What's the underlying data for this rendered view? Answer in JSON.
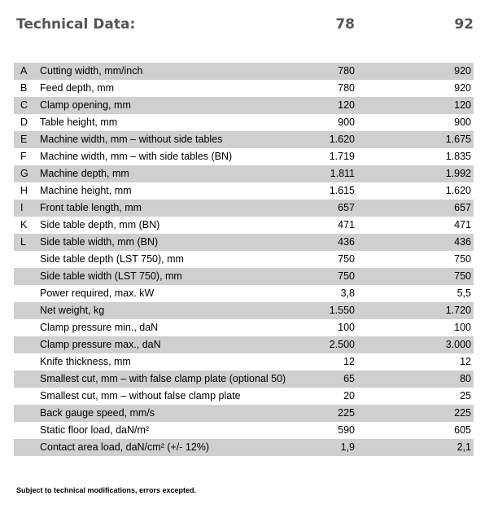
{
  "header": {
    "title": "Technical Data:",
    "col1": "78",
    "col2": "92"
  },
  "rows": [
    {
      "letter": "A",
      "label": "Cutting width, mm/inch",
      "v1": "780",
      "v2": "920"
    },
    {
      "letter": "B",
      "label": "Feed depth, mm",
      "v1": "780",
      "v2": "920"
    },
    {
      "letter": "C",
      "label": "Clamp opening, mm",
      "v1": "120",
      "v2": "120"
    },
    {
      "letter": "D",
      "label": "Table height, mm",
      "v1": "900",
      "v2": "900"
    },
    {
      "letter": "E",
      "label": "Machine width, mm – without side tables",
      "v1": "1.620",
      "v2": "1.675"
    },
    {
      "letter": "F",
      "label": "Machine width, mm – with side tables (BN)",
      "v1": "1.719",
      "v2": "1.835"
    },
    {
      "letter": "G",
      "label": "Machine depth, mm",
      "v1": "1.811",
      "v2": "1.992"
    },
    {
      "letter": "H",
      "label": "Machine height, mm",
      "v1": "1.615",
      "v2": "1.620"
    },
    {
      "letter": "I",
      "label": "Front table length, mm",
      "v1": "657",
      "v2": "657"
    },
    {
      "letter": "K",
      "label": "Side table depth, mm (BN)",
      "v1": "471",
      "v2": "471"
    },
    {
      "letter": "L",
      "label": "Side table width, mm (BN)",
      "v1": "436",
      "v2": "436"
    },
    {
      "letter": "",
      "label": "Side table depth (LST 750), mm",
      "v1": "750",
      "v2": "750"
    },
    {
      "letter": "",
      "label": "Side table width (LST 750), mm",
      "v1": "750",
      "v2": "750"
    },
    {
      "letter": "",
      "label": "Power required, max. kW",
      "v1": "3,8",
      "v2": "5,5"
    },
    {
      "letter": "",
      "label": "Net weight, kg",
      "v1": "1.550",
      "v2": "1.720"
    },
    {
      "letter": "",
      "label": "Clamp pressure min., daN",
      "v1": "100",
      "v2": "100"
    },
    {
      "letter": "",
      "label": "Clamp pressure max., daN",
      "v1": "2.500",
      "v2": "3.000"
    },
    {
      "letter": "",
      "label": "Knife thickness, mm",
      "v1": "12",
      "v2": "12"
    },
    {
      "letter": "",
      "label": "Smallest cut, mm – with false clamp plate (optional 50)",
      "v1": "65",
      "v2": "80"
    },
    {
      "letter": "",
      "label": "Smallest cut, mm – without false clamp plate",
      "v1": "20",
      "v2": "25"
    },
    {
      "letter": "",
      "label": "Back gauge speed, mm/s",
      "v1": "225",
      "v2": "225"
    },
    {
      "letter": "",
      "label": "Static floor load, daN/m²",
      "v1": "590",
      "v2": "605"
    },
    {
      "letter": "",
      "label": "Contact area load, daN/cm² (+/- 12%)",
      "v1": "1,9",
      "v2": "2,1"
    }
  ],
  "footnote": "Subject to technical modifications, errors excepted."
}
